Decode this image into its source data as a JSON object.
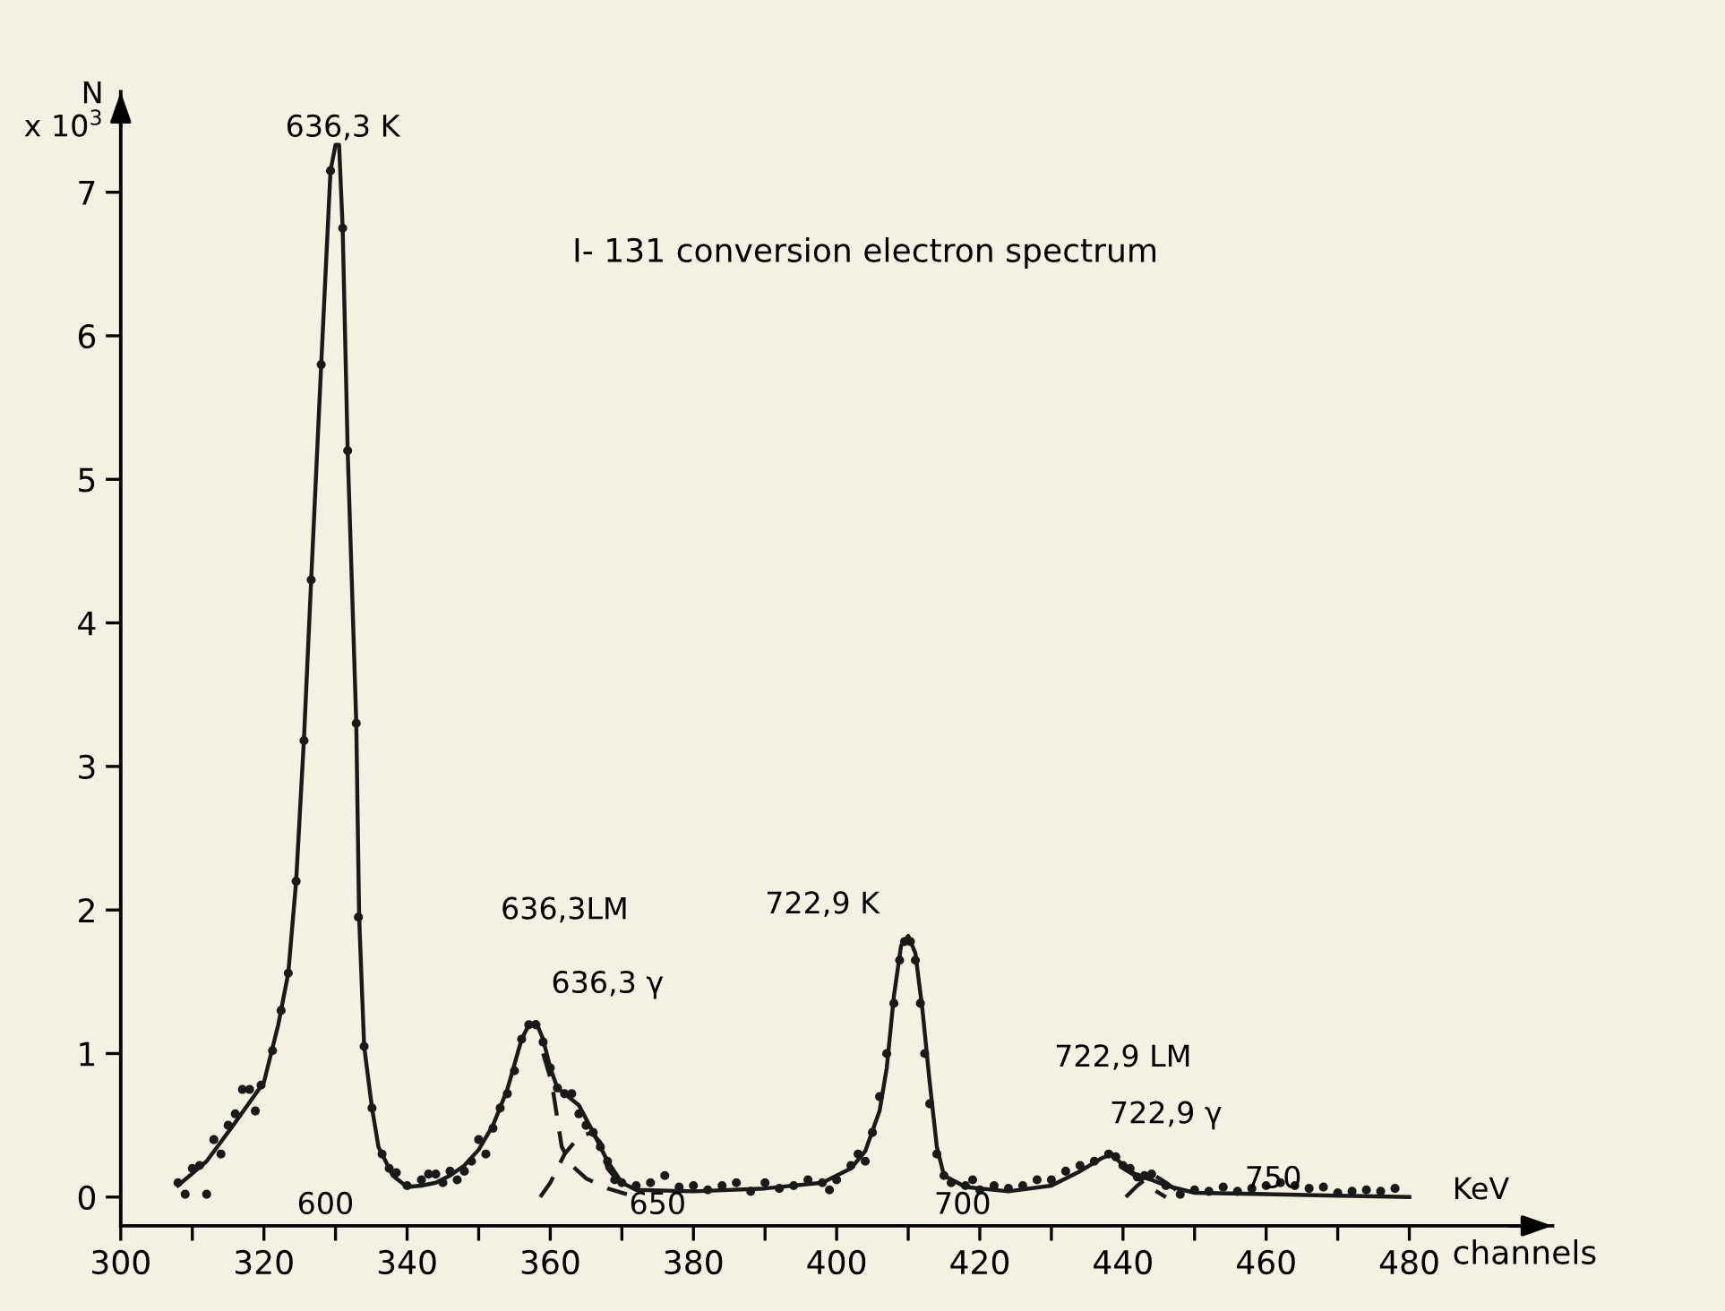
{
  "chart_data": {
    "type": "line",
    "title": "I- 131 conversion electron spectrum",
    "xlabel": "channels",
    "ylabel": "N\nx 10$^{3}$",
    "xlim": [
      300,
      500
    ],
    "ylim": [
      -0.2,
      7.7
    ],
    "xticks": [
      300,
      {
        "value": 310,
        "label": null
      },
      320,
      {
        "value": 330,
        "label": null
      },
      340,
      {
        "value": 350,
        "label": null
      },
      360,
      {
        "value": 370,
        "label": null
      },
      380,
      {
        "value": 390,
        "label": null
      },
      400,
      {
        "value": 410,
        "label": null
      },
      420,
      {
        "value": 430,
        "label": null
      },
      440,
      {
        "value": 450,
        "label": null
      },
      460,
      {
        "value": 470,
        "label": null
      },
      480
    ],
    "yticks": [
      0,
      1,
      2,
      3,
      4,
      5,
      6,
      7
    ],
    "grid": false,
    "legend": false,
    "series": [
      {
        "type": "scatter",
        "marker": "circle",
        "color": "#1a1a1a",
        "x": [
          308,
          309,
          310,
          311,
          312,
          313,
          314,
          315,
          316,
          317,
          318,
          318.8,
          319.6,
          321.2,
          322.4,
          323.4,
          324.5,
          325.6,
          326.6,
          328,
          329.3,
          331,
          331.7,
          332.9,
          333.2,
          334,
          335.1,
          336.5,
          337.5,
          338.5,
          340,
          342,
          343,
          344,
          345,
          346,
          347,
          348,
          349,
          350,
          351,
          352,
          353,
          354,
          355,
          356,
          357,
          358,
          359,
          360,
          361,
          362,
          363,
          364,
          365,
          366,
          367,
          368,
          369,
          370,
          372,
          374,
          376,
          378,
          380,
          382,
          384,
          386,
          388,
          390,
          392,
          394,
          396,
          398,
          399,
          400,
          402,
          403,
          404,
          405,
          406,
          407,
          408,
          408.8,
          409.5,
          410.3,
          411,
          411.7,
          412.3,
          413,
          414,
          415,
          416,
          418,
          419,
          420,
          422,
          424,
          426,
          428,
          430,
          432,
          434,
          436,
          438,
          439,
          440,
          441,
          442,
          443,
          444,
          446,
          448,
          450,
          452,
          454,
          456,
          458,
          460,
          462,
          464,
          466,
          468,
          470,
          472,
          474,
          476,
          478
        ],
        "values": [
          0.1,
          0.02,
          0.2,
          0.22,
          0.02,
          0.4,
          0.3,
          0.5,
          0.58,
          0.75,
          0.75,
          0.6,
          0.78,
          1.02,
          1.3,
          1.56,
          2.2,
          3.18,
          4.3,
          5.8,
          7.15,
          6.75,
          5.2,
          3.3,
          1.95,
          1.05,
          0.62,
          0.3,
          0.2,
          0.17,
          0.08,
          0.12,
          0.16,
          0.16,
          0.1,
          0.18,
          0.12,
          0.18,
          0.25,
          0.4,
          0.3,
          0.48,
          0.62,
          0.72,
          0.88,
          1.1,
          1.2,
          1.2,
          1.08,
          0.9,
          0.76,
          0.72,
          0.72,
          0.58,
          0.5,
          0.45,
          0.35,
          0.25,
          0.12,
          0.1,
          0.08,
          0.1,
          0.15,
          0.07,
          0.08,
          0.05,
          0.08,
          0.1,
          0.04,
          0.1,
          0.06,
          0.08,
          0.12,
          0.1,
          0.05,
          0.12,
          0.22,
          0.3,
          0.25,
          0.45,
          0.7,
          1.0,
          1.35,
          1.65,
          1.78,
          1.78,
          1.65,
          1.35,
          1.0,
          0.65,
          0.3,
          0.15,
          0.1,
          0.08,
          0.12,
          0.05,
          0.08,
          0.06,
          0.08,
          0.12,
          0.12,
          0.18,
          0.22,
          0.25,
          0.3,
          0.28,
          0.22,
          0.2,
          0.14,
          0.15,
          0.16,
          0.08,
          0.02,
          0.05,
          0.04,
          0.07,
          0.04,
          0.06,
          0.08,
          0.1,
          0.08,
          0.06,
          0.07,
          0.03,
          0.04,
          0.05,
          0.04,
          0.06
        ]
      },
      {
        "line_style": "solid",
        "color": "#1a1a1a",
        "x": [
          308,
          312,
          316,
          320,
          322,
          323.4,
          324.5,
          325.6,
          326.6,
          328,
          329.3,
          330,
          330.5,
          331,
          331.7,
          332.9,
          333.3,
          334,
          335.1,
          336,
          338,
          340,
          342,
          344,
          346,
          348,
          350,
          352,
          354,
          356,
          357,
          358,
          359,
          360,
          361,
          362,
          364,
          366,
          368,
          370,
          372,
          380,
          390,
          398,
          402,
          404,
          406,
          407,
          408,
          409,
          410,
          411,
          412,
          413,
          414,
          415,
          418,
          424,
          430,
          434,
          437,
          438.5,
          440,
          442,
          444,
          446,
          450,
          460,
          470,
          480
        ],
        "values": [
          0.08,
          0.25,
          0.52,
          0.8,
          1.2,
          1.56,
          2.2,
          3.2,
          4.3,
          5.8,
          7.15,
          7.33,
          7.33,
          6.75,
          5.2,
          3.3,
          1.95,
          1.05,
          0.62,
          0.35,
          0.15,
          0.07,
          0.08,
          0.1,
          0.15,
          0.22,
          0.33,
          0.5,
          0.75,
          1.1,
          1.2,
          1.22,
          1.1,
          0.9,
          0.76,
          0.72,
          0.64,
          0.45,
          0.25,
          0.1,
          0.05,
          0.04,
          0.06,
          0.1,
          0.2,
          0.32,
          0.6,
          0.9,
          1.4,
          1.75,
          1.82,
          1.7,
          1.3,
          0.8,
          0.35,
          0.15,
          0.07,
          0.04,
          0.08,
          0.18,
          0.27,
          0.3,
          0.22,
          0.15,
          0.12,
          0.08,
          0.03,
          0.02,
          0.01,
          0.0
        ]
      },
      {
        "line_style": "dashed",
        "color": "#1a1a1a",
        "x": [
          359,
          360.2,
          361.6,
          363,
          365,
          368,
          370.7
        ],
        "values": [
          1.0,
          0.8,
          0.35,
          0.22,
          0.13,
          0.06,
          0.02
        ]
      },
      {
        "line_style": "dashed",
        "color": "#1a1a1a",
        "x": [
          358.6,
          360,
          362,
          364,
          365.8,
          367,
          368,
          370
        ],
        "values": [
          0.0,
          0.1,
          0.3,
          0.42,
          0.45,
          0.38,
          0.2,
          0.08
        ]
      },
      {
        "line_style": "dashed",
        "color": "#1a1a1a",
        "x": [
          440,
          442,
          444,
          446
        ],
        "values": [
          0.2,
          0.14,
          0.06,
          0.0
        ]
      },
      {
        "line_style": "dashed",
        "color": "#1a1a1a",
        "x": [
          440.4,
          442,
          444.1,
          446,
          448
        ],
        "values": [
          0.0,
          0.08,
          0.16,
          0.1,
          0.03
        ]
      }
    ],
    "annotations": [
      "636,3 K",
      "636,3LM",
      "636,3 γ",
      "722,9 K",
      "722,9 LM",
      "722,9 γ",
      "600",
      "650",
      "700",
      "750",
      "KeV"
    ]
  }
}
